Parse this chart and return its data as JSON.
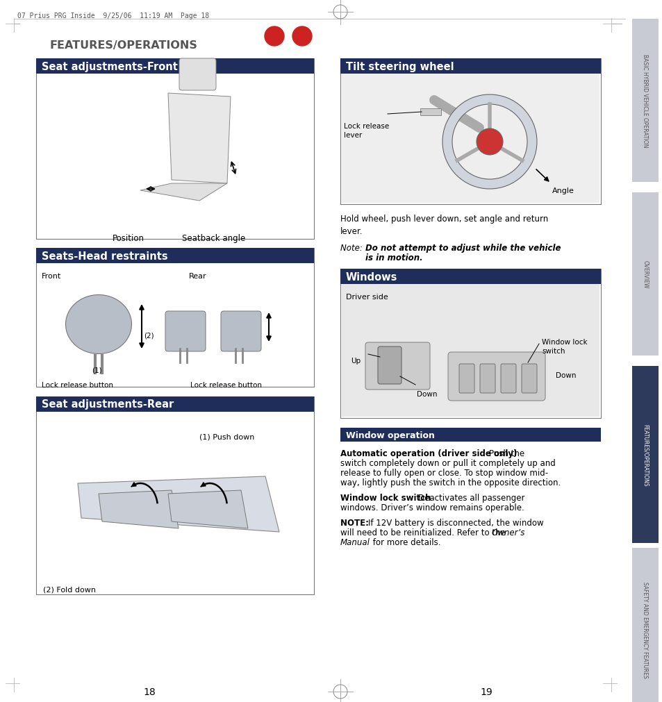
{
  "page_header": "07 Prius PRG Inside  9/25/06  11:19 AM  Page 18",
  "section_title": "FEATURES/OPERATIONS",
  "page_numbers": [
    "18",
    "19"
  ],
  "red_dot_color": "#cc2222",
  "dark_navy": "#1e2d5a",
  "light_gray_bg": "#f0f0f0",
  "white": "#ffffff",
  "black": "#000000",
  "text_color": "#222222",
  "sidebar_light": "#c8cad4",
  "sidebar_dark": "#2e3a5c",
  "left_panel": {
    "boxes": [
      {
        "title": "Seat adjustments-Front",
        "title_bg": "#1e2d5a",
        "title_fg": "#ffffff",
        "caption_lines": [
          "Position      Seatback angle"
        ]
      },
      {
        "title": "Seats-Head restraints",
        "title_bg": "#1e2d5a",
        "title_fg": "#ffffff",
        "caption_lines": [
          "Front                                    Rear",
          "Lock release button        Lock release button"
        ]
      },
      {
        "title": "Seat adjustments-Rear",
        "title_bg": "#1e2d5a",
        "title_fg": "#ffffff",
        "caption_lines": [
          "(1) Push down",
          "(2) Fold down"
        ]
      }
    ]
  },
  "right_panel": {
    "boxes": [
      {
        "title": "Tilt steering wheel",
        "title_bg": "#1e2d5a",
        "title_fg": "#ffffff",
        "body_text": "Hold wheel, push lever down, set angle and return\nlever.",
        "note_text": "Note: Do not attempt to adjust while the vehicle\n         is in motion."
      },
      {
        "title": "Windows",
        "title_bg": "#1e2d5a",
        "title_fg": "#ffffff"
      }
    ],
    "window_operation": {
      "title": "Window operation",
      "title_bg": "#1e2d5a",
      "title_fg": "#ffffff"
    }
  },
  "sidebar_labels": [
    "BASIC HYBRID VEHICLE OPERATION",
    "OVERVIEW",
    "FEATURES/OPERATIONS",
    "SAFETY AND EMERGENCY FEATURES"
  ]
}
